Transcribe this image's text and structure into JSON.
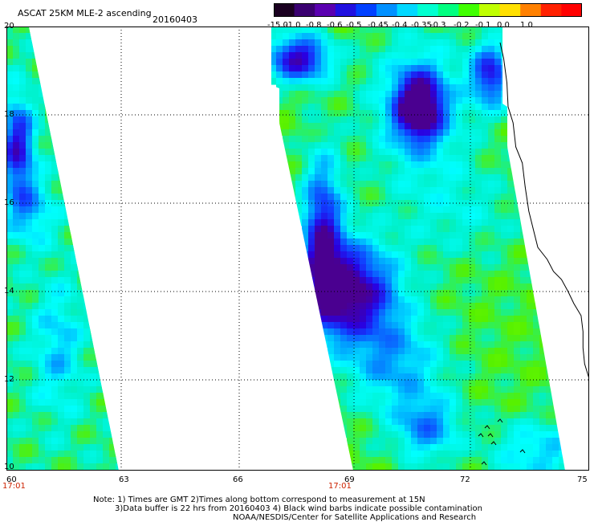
{
  "title": "ASCAT 25KM MLE-2 ascending",
  "date": "20160403",
  "colorbar": {
    "labels": [
      "-15.0",
      "-1.0",
      "-0.8",
      "-0.6",
      "-0.5",
      "-0.45",
      "-0.4",
      "-0.35",
      "-0.3",
      "-0.2",
      "-0.1",
      "0.0",
      "1.0"
    ],
    "colors": [
      "#1a0020",
      "#3a0070",
      "#5a00b0",
      "#2010e0",
      "#0040ff",
      "#0090ff",
      "#00d8ff",
      "#00ffd0",
      "#00ff80",
      "#40ff00",
      "#c0ff00",
      "#ffe000",
      "#ff8000",
      "#ff2000",
      "#ff0000"
    ]
  },
  "axes": {
    "y_ticks": [
      "20",
      "18",
      "16",
      "14",
      "12",
      "10"
    ],
    "x_ticks_left": [
      "60",
      "63",
      "66"
    ],
    "x_ticks_right": [
      "69",
      "72",
      "75"
    ],
    "time_labels": [
      "17:01",
      "17:01"
    ]
  },
  "notes": [
    "Note: 1) Times are GMT 2)Times along bottom correspond to measurement at 15N",
    "3)Data buffer is 22 hrs from 20160403 4) Black wind barbs indicate possible contamination",
    "NOAA/NESDIS/Center for Satellite Applications and Research"
  ],
  "palette": {
    "green": "#55f000",
    "lime": "#80ff00",
    "cyan": "#00ffff",
    "aqua": "#00f0c8",
    "blue": "#1040ff",
    "deepblue": "#2a00e0",
    "purple": "#4a0090"
  }
}
